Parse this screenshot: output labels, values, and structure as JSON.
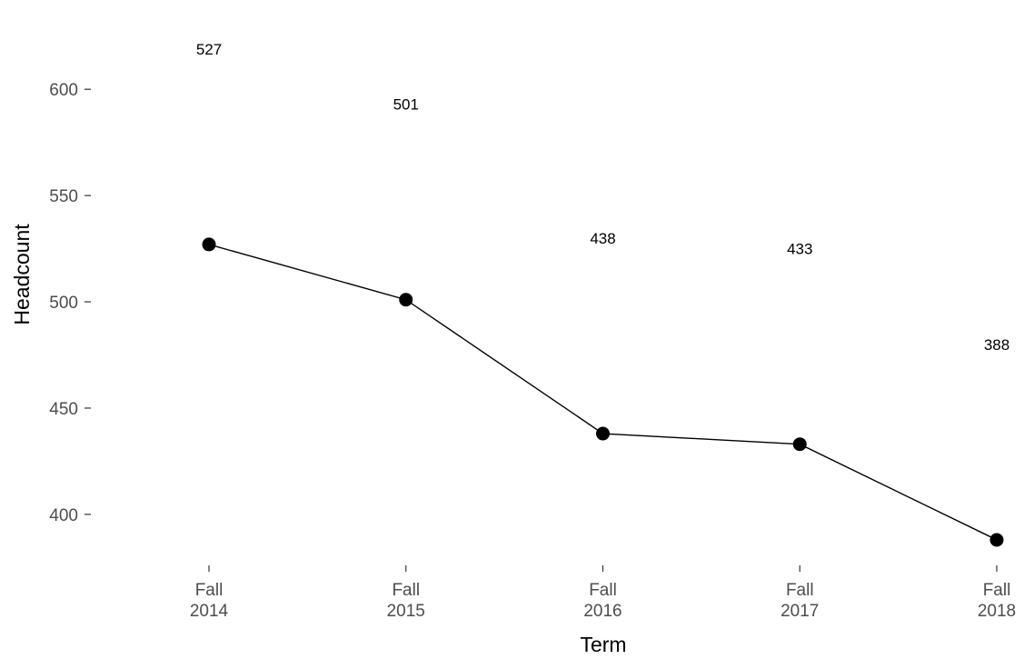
{
  "chart_data": {
    "type": "line",
    "title": "",
    "xlabel": "Term",
    "ylabel": "Headcount",
    "categories": [
      [
        "Fall",
        "2014"
      ],
      [
        "Fall",
        "2015"
      ],
      [
        "Fall",
        "2016"
      ],
      [
        "Fall",
        "2017"
      ],
      [
        "Fall",
        "2018"
      ]
    ],
    "values": [
      527,
      501,
      438,
      433,
      388
    ],
    "data_labels": [
      "527",
      "501",
      "438",
      "433",
      "388"
    ],
    "yticks": [
      400,
      450,
      500,
      550,
      600
    ],
    "ytick_labels": [
      "400",
      "450",
      "500",
      "550",
      "600"
    ],
    "ylim": [
      376,
      642
    ],
    "grid": false,
    "legend": "none",
    "colors": {
      "line": "#000000",
      "point": "#000000",
      "tick_text": "#4d4d4d",
      "tick_mark": "#333333",
      "background": "#ffffff"
    }
  }
}
